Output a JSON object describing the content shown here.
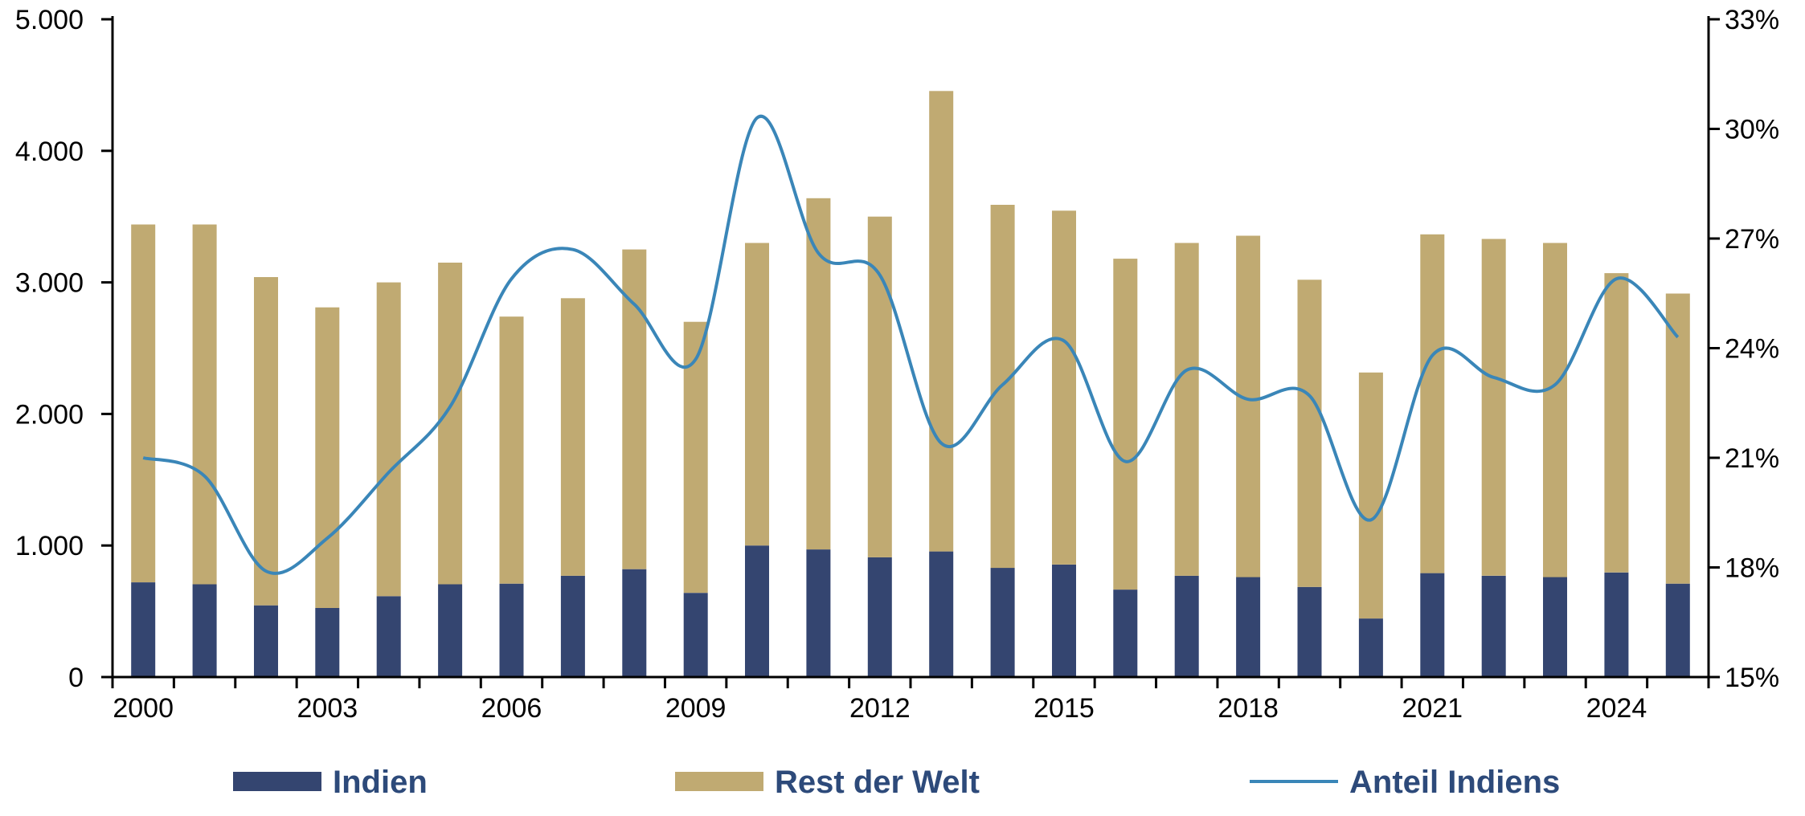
{
  "chart_data": {
    "type": "bar",
    "stacked": true,
    "title": "",
    "x": [
      2000,
      2001,
      2002,
      2003,
      2004,
      2005,
      2006,
      2007,
      2008,
      2009,
      2010,
      2011,
      2012,
      2013,
      2014,
      2015,
      2016,
      2017,
      2018,
      2019,
      2020,
      2021,
      2022,
      2023,
      2024,
      2025
    ],
    "x_tick_labels": [
      "2000",
      "2003",
      "2006",
      "2009",
      "2012",
      "2015",
      "2018",
      "2021",
      "2024"
    ],
    "series": [
      {
        "name": "Indien",
        "type": "bar",
        "axis": "left",
        "color": "#344570",
        "values": [
          720,
          705,
          545,
          525,
          615,
          705,
          710,
          770,
          820,
          640,
          1000,
          970,
          910,
          955,
          830,
          855,
          665,
          770,
          760,
          685,
          445,
          790,
          770,
          760,
          795,
          710
        ]
      },
      {
        "name": "Rest der Welt",
        "type": "bar",
        "axis": "left",
        "color": "#c0aa72",
        "values": [
          2720,
          2735,
          2495,
          2285,
          2385,
          2445,
          2030,
          2110,
          2430,
          2060,
          2300,
          2670,
          2590,
          3500,
          2760,
          2690,
          2515,
          2530,
          2595,
          2335,
          1870,
          2575,
          2560,
          2540,
          2275,
          2205
        ]
      },
      {
        "name": "Anteil Indiens",
        "type": "line",
        "axis": "right",
        "color": "#3a86b8",
        "values": [
          21.0,
          20.5,
          17.9,
          18.8,
          20.6,
          22.4,
          25.9,
          26.7,
          25.2,
          23.7,
          30.3,
          26.6,
          26.0,
          21.4,
          23.0,
          24.2,
          20.9,
          23.4,
          22.6,
          22.7,
          19.3,
          23.8,
          23.2,
          23.0,
          25.9,
          24.3
        ]
      }
    ],
    "y_left": {
      "ticks": [
        "0",
        "1.000",
        "2.000",
        "3.000",
        "4.000",
        "5.000"
      ],
      "min": 0,
      "max": 5000
    },
    "y_right": {
      "ticks": [
        "15%",
        "18%",
        "21%",
        "24%",
        "27%",
        "30%",
        "33%"
      ],
      "min": 15,
      "max": 33
    },
    "legend": {
      "position": "bottom",
      "items": [
        {
          "label": "Indien",
          "kind": "bar",
          "color": "#344570"
        },
        {
          "label": "Rest der Welt",
          "kind": "bar",
          "color": "#c0aa72"
        },
        {
          "label": "Anteil Indiens",
          "kind": "line",
          "color": "#3a86b8"
        }
      ]
    },
    "grid": false
  }
}
